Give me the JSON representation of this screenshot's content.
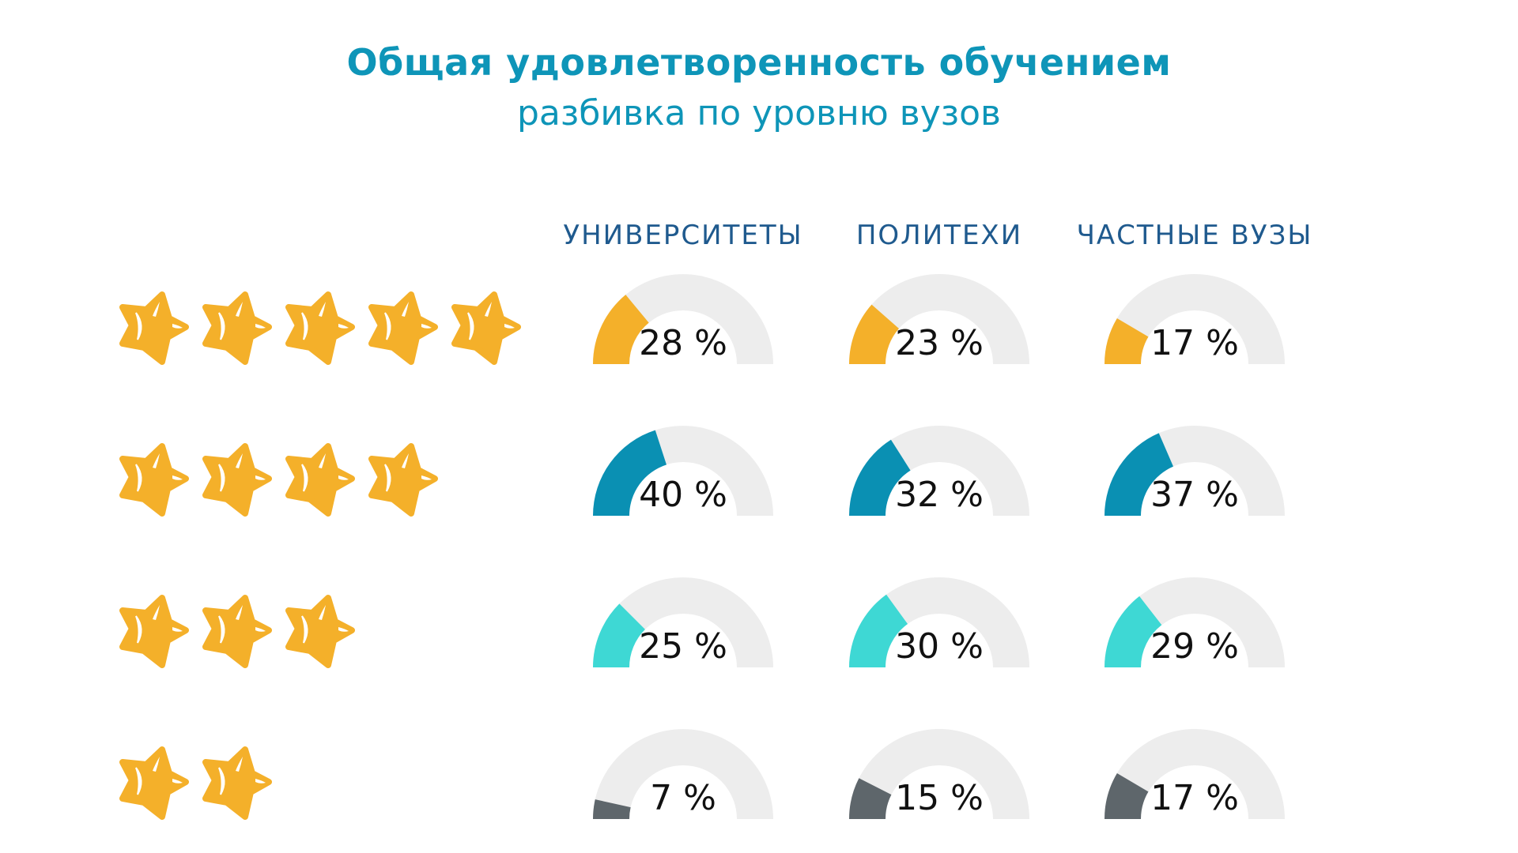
{
  "chart_data": {
    "type": "gauge-grid",
    "title": "Общая удовлетворенность обучением",
    "subtitle": "разбивка по уровню вузов",
    "columns": [
      "УНИВЕРСИТЕТЫ",
      "ПОЛИТЕХИ",
      "ЧАСТНЫЕ ВУЗЫ"
    ],
    "rows": [
      {
        "stars": 5,
        "color": "#F4B02A",
        "values": [
          28,
          23,
          17
        ],
        "labels": [
          "28 %",
          "23 %",
          "17 %"
        ]
      },
      {
        "stars": 4,
        "color": "#0A90B3",
        "values": [
          40,
          32,
          37
        ],
        "labels": [
          "40 %",
          "32 %",
          "37 %"
        ]
      },
      {
        "stars": 3,
        "color": "#3ED8D4",
        "values": [
          25,
          30,
          29
        ],
        "labels": [
          "25 %",
          "30 %",
          "29 %"
        ]
      },
      {
        "stars": 2,
        "color": "#5E666B",
        "values": [
          7,
          15,
          17
        ],
        "labels": [
          "7 %",
          "15 %",
          "17 %"
        ]
      }
    ],
    "track_color": "#EDEDED",
    "star_color": "#F4B02A",
    "ylim": [
      0,
      100
    ]
  }
}
